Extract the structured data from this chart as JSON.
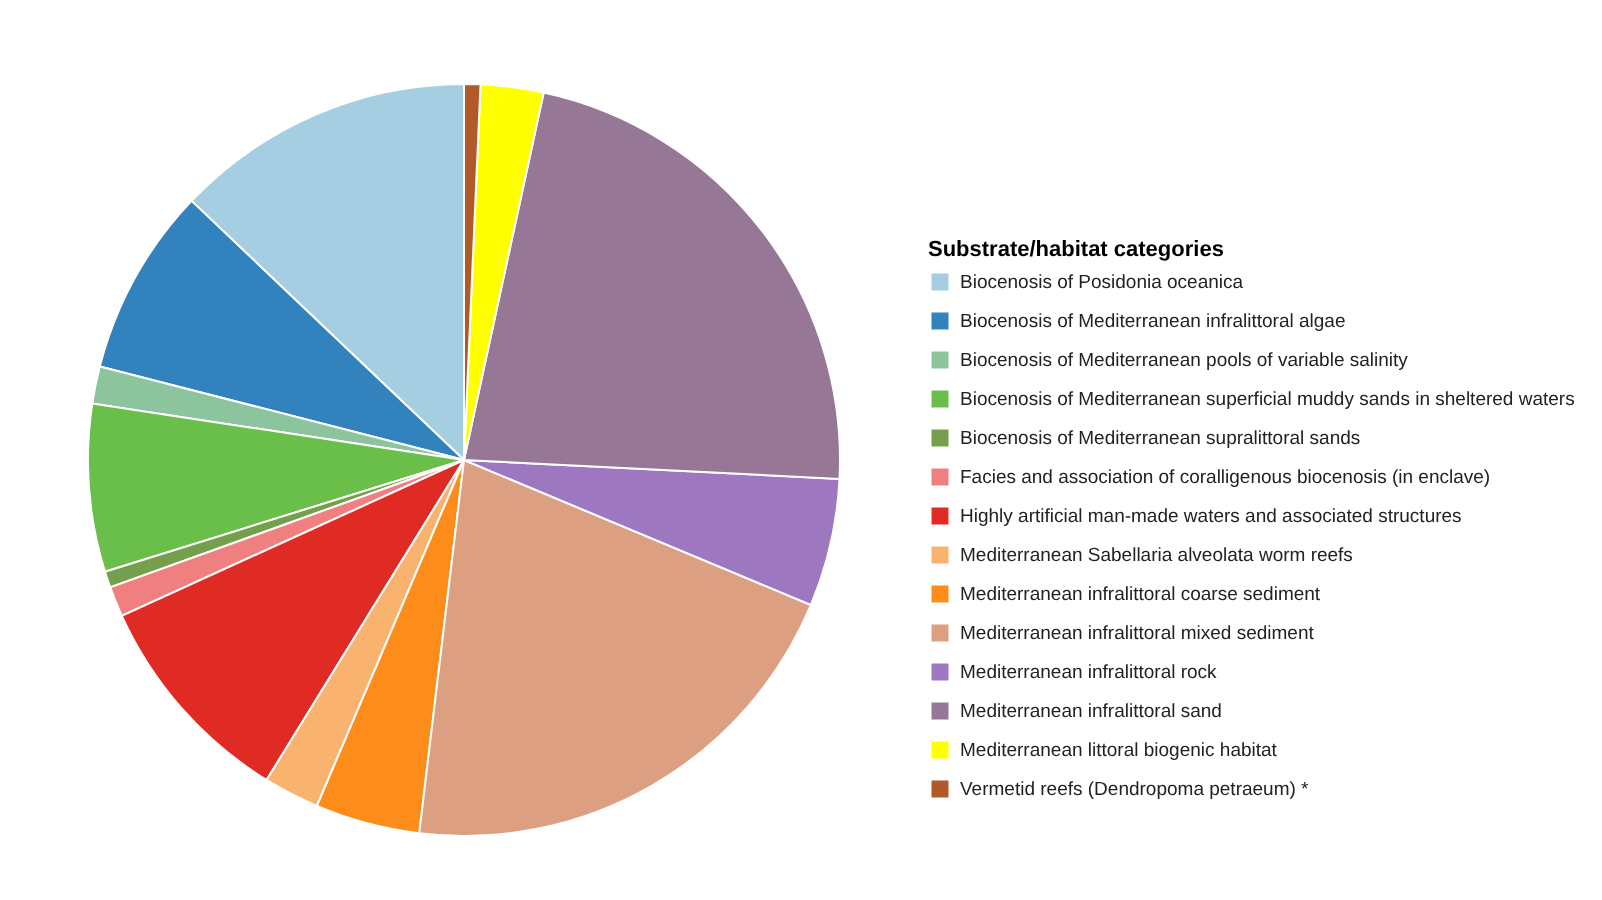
{
  "chart_data": {
    "type": "pie",
    "legend_title": "Substrate/habitat categories",
    "categories": [
      "Biocenosis of Posidonia oceanica",
      "Biocenosis of Mediterranean infralittoral algae",
      "Biocenosis of Mediterranean pools of variable salinity",
      "Biocenosis of Mediterranean superficial muddy sands in sheltered waters",
      "Biocenosis of Mediterranean supralittoral sands",
      "Facies and association of coralligenous biocenosis (in enclave)",
      "Highly artificial man-made waters and associated structures",
      "Mediterranean Sabellaria alveolata worm reefs",
      "Mediterranean infralittoral coarse sediment",
      "Mediterranean infralittoral mixed sediment",
      "Mediterranean infralittoral rock",
      "Mediterranean infralittoral sand",
      "Mediterranean littoral biogenic habitat",
      "Vermetid reefs (Dendropoma petraeum) *"
    ],
    "values": [
      12.9,
      8.1,
      1.6,
      7.2,
      0.7,
      1.3,
      9.4,
      2.4,
      4.5,
      20.6,
      5.5,
      22.4,
      2.7,
      0.7
    ],
    "colors": [
      "#a6cee3",
      "#3282bd",
      "#8cc49e",
      "#6abf4b",
      "#74a04d",
      "#f08080",
      "#e02a24",
      "#f9b36f",
      "#fd8c1a",
      "#dd9f82",
      "#9d78c0",
      "#977796",
      "#ffff00",
      "#b15928"
    ],
    "legend": "right"
  }
}
